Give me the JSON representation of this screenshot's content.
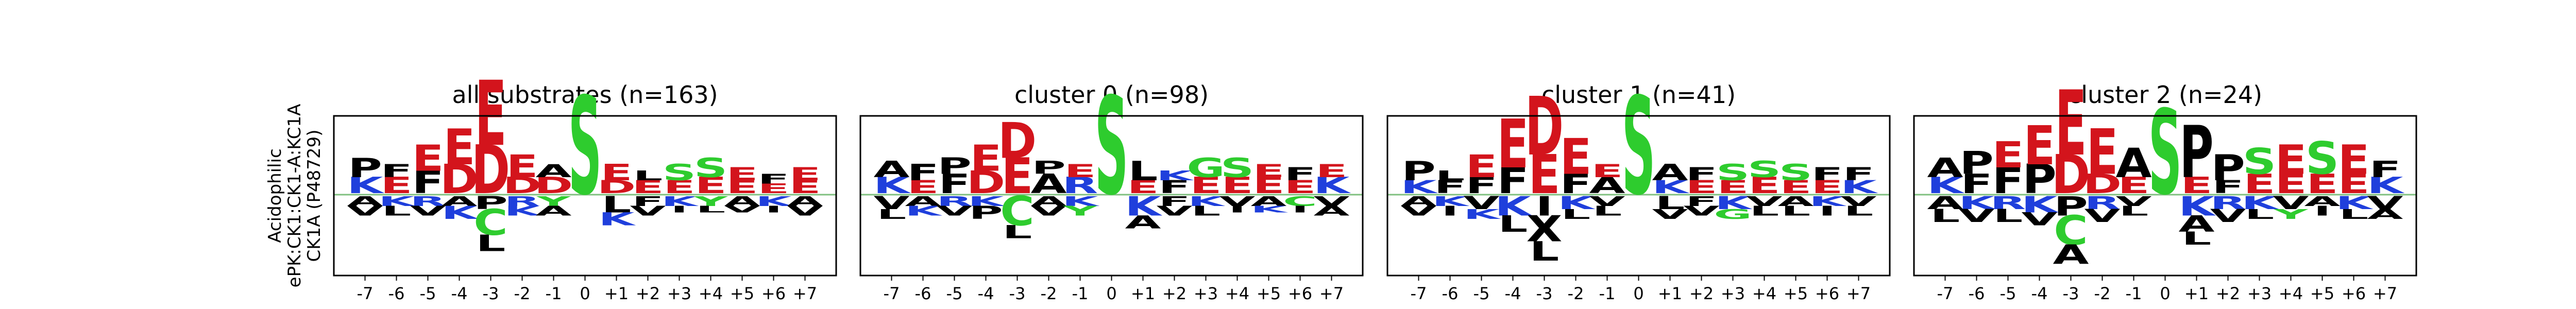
{
  "row_label": {
    "lines": [
      "Acidophilic",
      "ePK:CK1:CK1-A:KC1A",
      "CK1A (P48729)"
    ]
  },
  "colors": {
    "acidic": "#d3141c",
    "polar": "#2ecc2e",
    "hydrophobic": "#000000",
    "basic": "#1f3fdc",
    "amide": "#b235c9",
    "zero_line": "#7fbf7f",
    "frame": "#000000"
  },
  "chart_data": [
    {
      "type": "sequence-logo",
      "title": "all substrates (n=163)",
      "positions": [
        "-7",
        "-6",
        "-5",
        "-4",
        "-3",
        "-2",
        "-1",
        "0",
        "+1",
        "+2",
        "+3",
        "+4",
        "+5",
        "+6",
        "+7"
      ],
      "enriched": [
        [
          [
            "K",
            0.25
          ],
          [
            "P",
            0.3
          ]
        ],
        [
          [
            "E",
            0.25
          ],
          [
            "F",
            0.2
          ]
        ],
        [
          [
            "F",
            0.35
          ],
          [
            "E",
            0.4
          ]
        ],
        [
          [
            "D",
            0.45
          ],
          [
            "E",
            0.55
          ]
        ],
        [
          [
            "D",
            0.75
          ],
          [
            "E",
            1.0
          ]
        ],
        [
          [
            "D",
            0.25
          ],
          [
            "E",
            0.35
          ]
        ],
        [
          [
            "D",
            0.25
          ],
          [
            "A",
            0.2
          ]
        ],
        [
          [
            "S",
            1.5
          ]
        ],
        [
          [
            "D",
            0.2
          ],
          [
            "E",
            0.25
          ]
        ],
        [
          [
            "E",
            0.2
          ],
          [
            "L",
            0.15
          ]
        ],
        [
          [
            "E",
            0.2
          ],
          [
            "S",
            0.25
          ]
        ],
        [
          [
            "E",
            0.25
          ],
          [
            "S",
            0.3
          ]
        ],
        [
          [
            "E",
            0.2
          ],
          [
            "E",
            0.2
          ]
        ],
        [
          [
            "E",
            0.15
          ],
          [
            "F",
            0.15
          ]
        ],
        [
          [
            "E",
            0.2
          ],
          [
            "E",
            0.2
          ]
        ]
      ],
      "depleted": [
        [
          [
            "A",
            0.15
          ],
          [
            "V",
            0.15
          ]
        ],
        [
          [
            "K",
            0.15
          ],
          [
            "L",
            0.15
          ]
        ],
        [
          [
            "R",
            0.15
          ],
          [
            "V",
            0.15
          ]
        ],
        [
          [
            "A",
            0.15
          ],
          [
            "K",
            0.2
          ]
        ],
        [
          [
            "P",
            0.2
          ],
          [
            "C",
            0.4
          ],
          [
            "L",
            0.25
          ]
        ],
        [
          [
            "R",
            0.15
          ],
          [
            "K",
            0.15
          ]
        ],
        [
          [
            "Y",
            0.15
          ],
          [
            "A",
            0.15
          ]
        ],
        [],
        [
          [
            "L",
            0.25
          ],
          [
            "K",
            0.2
          ]
        ],
        [
          [
            "F",
            0.15
          ],
          [
            "V",
            0.15
          ]
        ],
        [
          [
            "K",
            0.15
          ],
          [
            "I",
            0.1
          ]
        ],
        [
          [
            "Y",
            0.15
          ],
          [
            "L",
            0.1
          ]
        ],
        [
          [
            "A",
            0.15
          ],
          [
            "V",
            0.1
          ]
        ],
        [
          [
            "K",
            0.15
          ],
          [
            "I",
            0.1
          ]
        ],
        [
          [
            "A",
            0.15
          ],
          [
            "V",
            0.15
          ]
        ]
      ]
    },
    {
      "type": "sequence-logo",
      "title": "cluster 0 (n=98)",
      "positions": [
        "-7",
        "-6",
        "-5",
        "-4",
        "-3",
        "-2",
        "-1",
        "0",
        "+1",
        "+2",
        "+3",
        "+4",
        "+5",
        "+6",
        "+7"
      ],
      "enriched": [
        [
          [
            "K",
            0.25
          ],
          [
            "A",
            0.25
          ]
        ],
        [
          [
            "E",
            0.2
          ],
          [
            "F",
            0.25
          ]
        ],
        [
          [
            "F",
            0.3
          ],
          [
            "P",
            0.25
          ]
        ],
        [
          [
            "D",
            0.35
          ],
          [
            "E",
            0.4
          ]
        ],
        [
          [
            "E",
            0.55
          ],
          [
            "D",
            0.55
          ]
        ],
        [
          [
            "A",
            0.3
          ],
          [
            "P",
            0.2
          ]
        ],
        [
          [
            "R",
            0.25
          ],
          [
            "E",
            0.2
          ]
        ],
        [
          [
            "S",
            1.5
          ]
        ],
        [
          [
            "E",
            0.2
          ],
          [
            "L",
            0.3
          ]
        ],
        [
          [
            "F",
            0.2
          ],
          [
            "K",
            0.15
          ]
        ],
        [
          [
            "E",
            0.25
          ],
          [
            "G",
            0.3
          ]
        ],
        [
          [
            "E",
            0.25
          ],
          [
            "S",
            0.3
          ]
        ],
        [
          [
            "E",
            0.25
          ],
          [
            "E",
            0.2
          ]
        ],
        [
          [
            "E",
            0.2
          ],
          [
            "F",
            0.2
          ]
        ],
        [
          [
            "K",
            0.25
          ],
          [
            "E",
            0.2
          ]
        ]
      ],
      "depleted": [
        [
          [
            "V",
            0.2
          ],
          [
            "L",
            0.15
          ]
        ],
        [
          [
            "A",
            0.15
          ],
          [
            "K",
            0.15
          ]
        ],
        [
          [
            "R",
            0.15
          ],
          [
            "V",
            0.15
          ]
        ],
        [
          [
            "K",
            0.15
          ],
          [
            "P",
            0.2
          ]
        ],
        [
          [
            "C",
            0.45
          ],
          [
            "L",
            0.2
          ]
        ],
        [
          [
            "A",
            0.15
          ],
          [
            "V",
            0.15
          ]
        ],
        [
          [
            "K",
            0.15
          ],
          [
            "Y",
            0.15
          ]
        ],
        [],
        [
          [
            "K",
            0.3
          ],
          [
            "A",
            0.2
          ]
        ],
        [
          [
            "F",
            0.15
          ],
          [
            "V",
            0.15
          ]
        ],
        [
          [
            "K",
            0.15
          ],
          [
            "L",
            0.15
          ]
        ],
        [
          [
            "V",
            0.15
          ],
          [
            "I",
            0.1
          ]
        ],
        [
          [
            "A",
            0.15
          ],
          [
            "K",
            0.1
          ]
        ],
        [
          [
            "C",
            0.15
          ],
          [
            "I",
            0.1
          ]
        ],
        [
          [
            "V",
            0.15
          ],
          [
            "A",
            0.15
          ]
        ]
      ]
    },
    {
      "type": "sequence-logo",
      "title": "cluster 1 (n=41)",
      "positions": [
        "-7",
        "-6",
        "-5",
        "-4",
        "-3",
        "-2",
        "-1",
        "0",
        "+1",
        "+2",
        "+3",
        "+4",
        "+5",
        "+6",
        "+7"
      ],
      "enriched": [
        [
          [
            "K",
            0.2
          ],
          [
            "P",
            0.3
          ]
        ],
        [
          [
            "F",
            0.2
          ],
          [
            "L",
            0.15
          ]
        ],
        [
          [
            "F",
            0.25
          ],
          [
            "E",
            0.35
          ]
        ],
        [
          [
            "F",
            0.4
          ],
          [
            "E",
            0.75
          ]
        ],
        [
          [
            "E",
            0.6
          ],
          [
            "D",
            0.9
          ]
        ],
        [
          [
            "F",
            0.3
          ],
          [
            "E",
            0.55
          ]
        ],
        [
          [
            "A",
            0.25
          ],
          [
            "E",
            0.2
          ]
        ],
        [
          [
            "S",
            1.5
          ]
        ],
        [
          [
            "K",
            0.2
          ],
          [
            "A",
            0.25
          ]
        ],
        [
          [
            "E",
            0.2
          ],
          [
            "F",
            0.2
          ]
        ],
        [
          [
            "E",
            0.2
          ],
          [
            "S",
            0.25
          ]
        ],
        [
          [
            "E",
            0.25
          ],
          [
            "S",
            0.25
          ]
        ],
        [
          [
            "E",
            0.2
          ],
          [
            "S",
            0.25
          ]
        ],
        [
          [
            "E",
            0.2
          ],
          [
            "F",
            0.2
          ]
        ],
        [
          [
            "K",
            0.2
          ],
          [
            "F",
            0.2
          ]
        ]
      ],
      "depleted": [
        [
          [
            "A",
            0.15
          ],
          [
            "V",
            0.15
          ]
        ],
        [
          [
            "K",
            0.15
          ],
          [
            "I",
            0.15
          ]
        ],
        [
          [
            "V",
            0.2
          ],
          [
            "K",
            0.15
          ]
        ],
        [
          [
            "K",
            0.3
          ],
          [
            "L",
            0.25
          ]
        ],
        [
          [
            "I",
            0.3
          ],
          [
            "X",
            0.4
          ],
          [
            "L",
            0.3
          ]
        ],
        [
          [
            "K",
            0.2
          ],
          [
            "L",
            0.15
          ]
        ],
        [
          [
            "V",
            0.15
          ],
          [
            "L",
            0.15
          ]
        ],
        [],
        [
          [
            "L",
            0.2
          ],
          [
            "V",
            0.15
          ]
        ],
        [
          [
            "F",
            0.15
          ],
          [
            "V",
            0.15
          ]
        ],
        [
          [
            "K",
            0.2
          ],
          [
            "G",
            0.15
          ]
        ],
        [
          [
            "V",
            0.15
          ],
          [
            "L",
            0.15
          ]
        ],
        [
          [
            "A",
            0.15
          ],
          [
            "L",
            0.15
          ]
        ],
        [
          [
            "K",
            0.15
          ],
          [
            "I",
            0.15
          ]
        ],
        [
          [
            "V",
            0.15
          ],
          [
            "L",
            0.15
          ]
        ]
      ]
    },
    {
      "type": "sequence-logo",
      "title": "cluster 2 (n=24)",
      "positions": [
        "-7",
        "-6",
        "-5",
        "-4",
        "-3",
        "-2",
        "-1",
        "0",
        "+1",
        "+2",
        "+3",
        "+4",
        "+5",
        "+6",
        "+7"
      ],
      "enriched": [
        [
          [
            "K",
            0.25
          ],
          [
            "A",
            0.3
          ]
        ],
        [
          [
            "F",
            0.3
          ],
          [
            "P",
            0.35
          ]
        ],
        [
          [
            "F",
            0.4
          ],
          [
            "E",
            0.4
          ]
        ],
        [
          [
            "P",
            0.45
          ],
          [
            "E",
            0.6
          ]
        ],
        [
          [
            "D",
            0.6
          ],
          [
            "E",
            1.0
          ]
        ],
        [
          [
            "D",
            0.3
          ],
          [
            "E",
            0.7
          ]
        ],
        [
          [
            "E",
            0.25
          ],
          [
            "A",
            0.45
          ]
        ],
        [
          [
            "S",
            1.3
          ]
        ],
        [
          [
            "E",
            0.25
          ],
          [
            "P",
            0.8
          ]
        ],
        [
          [
            "F",
            0.2
          ],
          [
            "P",
            0.4
          ]
        ],
        [
          [
            "E",
            0.3
          ],
          [
            "S",
            0.4
          ]
        ],
        [
          [
            "E",
            0.3
          ],
          [
            "E",
            0.45
          ]
        ],
        [
          [
            "E",
            0.3
          ],
          [
            "S",
            0.5
          ]
        ],
        [
          [
            "E",
            0.3
          ],
          [
            "E",
            0.45
          ]
        ],
        [
          [
            "K",
            0.25
          ],
          [
            "F",
            0.25
          ]
        ]
      ],
      "depleted": [
        [
          [
            "A",
            0.2
          ],
          [
            "L",
            0.2
          ]
        ],
        [
          [
            "K",
            0.2
          ],
          [
            "V",
            0.2
          ]
        ],
        [
          [
            "R",
            0.2
          ],
          [
            "L",
            0.2
          ]
        ],
        [
          [
            "K",
            0.25
          ],
          [
            "V",
            0.2
          ]
        ],
        [
          [
            "P",
            0.3
          ],
          [
            "C",
            0.45
          ],
          [
            "A",
            0.3
          ]
        ],
        [
          [
            "R",
            0.2
          ],
          [
            "V",
            0.2
          ]
        ],
        [
          [
            "V",
            0.15
          ],
          [
            "L",
            0.15
          ]
        ],
        [],
        [
          [
            "K",
            0.3
          ],
          [
            "A",
            0.25
          ],
          [
            "L",
            0.2
          ]
        ],
        [
          [
            "R",
            0.2
          ],
          [
            "V",
            0.2
          ]
        ],
        [
          [
            "K",
            0.2
          ],
          [
            "L",
            0.15
          ]
        ],
        [
          [
            "V",
            0.2
          ],
          [
            "Y",
            0.15
          ]
        ],
        [
          [
            "A",
            0.15
          ],
          [
            "I",
            0.15
          ]
        ],
        [
          [
            "K",
            0.2
          ],
          [
            "L",
            0.15
          ]
        ],
        [
          [
            "V",
            0.2
          ],
          [
            "A",
            0.15
          ]
        ]
      ]
    }
  ]
}
